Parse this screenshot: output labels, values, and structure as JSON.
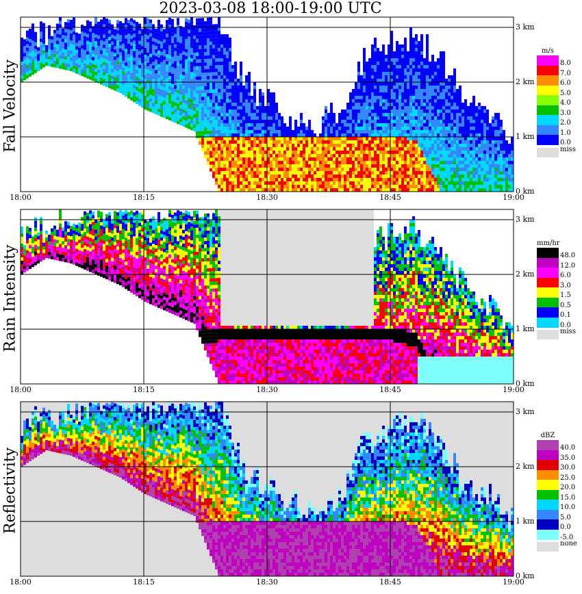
{
  "title": "2023-03-08   18:00-19:00 UTC",
  "x_tick_labels": [
    "18:00",
    "18:15",
    "18:30",
    "18:45",
    "19:00"
  ],
  "height_tick_labels": [
    "0 km",
    "1 km",
    "2 km",
    "3 km"
  ],
  "panels": [
    {
      "id": "fall-velocity",
      "ylabel": "Fall Velocity",
      "unit": "m/s",
      "missing_label": "miss",
      "scale": [
        {
          "label": "8.0",
          "color": "#ff00ff"
        },
        {
          "label": "7.0",
          "color": "#ff0000"
        },
        {
          "label": "6.0",
          "color": "#ff8c00"
        },
        {
          "label": "5.0",
          "color": "#ffff00"
        },
        {
          "label": "4.0",
          "color": "#88ff00"
        },
        {
          "label": "3.0",
          "color": "#00c000"
        },
        {
          "label": "2.0",
          "color": "#00d8ff"
        },
        {
          "label": "1.0",
          "color": "#3388ff"
        },
        {
          "label": "0.0",
          "color": "#0000ff"
        }
      ]
    },
    {
      "id": "rain-intensity",
      "ylabel": "Rain Intensity",
      "unit": "mm/hr",
      "missing_label": "miss",
      "scale": [
        {
          "label": "48.0",
          "color": "#000000"
        },
        {
          "label": "12.0",
          "color": "#c000c0"
        },
        {
          "label": "6.0",
          "color": "#ff00ff"
        },
        {
          "label": "3.0",
          "color": "#ff0000"
        },
        {
          "label": "1.5",
          "color": "#ffff00"
        },
        {
          "label": "0.5",
          "color": "#00c000"
        },
        {
          "label": "0.1",
          "color": "#0000ff"
        },
        {
          "label": "0.0",
          "color": "#00d8ff"
        }
      ],
      "extra_bottom_color": "#80ffff"
    },
    {
      "id": "reflectivity",
      "ylabel": "Reflectivity",
      "unit": "dBZ",
      "missing_label": "none",
      "scale": [
        {
          "label": "40.0",
          "color": "#b040b0"
        },
        {
          "label": "35.0",
          "color": "#c000c0"
        },
        {
          "label": "30.0",
          "color": "#e00000"
        },
        {
          "label": "25.0",
          "color": "#ff8c00"
        },
        {
          "label": "20.0",
          "color": "#ffff00"
        },
        {
          "label": "15.0",
          "color": "#00c000"
        },
        {
          "label": "10.0",
          "color": "#00d8ff"
        },
        {
          "label": "5.0",
          "color": "#3388ff"
        },
        {
          "label": "0.0",
          "color": "#0000c0"
        },
        {
          "label": "-5.0",
          "color": "#80ffff"
        }
      ]
    }
  ],
  "chart_data": {
    "type": "heatmap",
    "title": "2023-03-08   18:00-19:00 UTC",
    "x_range": [
      "18:00",
      "19:00"
    ],
    "y_range_km": [
      0,
      3.2
    ],
    "grid": true,
    "colors": {
      "missing": "#dddddd",
      "grid_line": "#000000"
    },
    "profiles_note_free": true,
    "profile_rows": [
      {
        "t": "18:00",
        "top": 2.7,
        "base": 2.0,
        "rain_top": 0
      },
      {
        "t": "18:03",
        "top": 2.9,
        "base": 2.3,
        "rain_top": 0
      },
      {
        "t": "18:06",
        "top": 3.0,
        "base": 2.2,
        "rain_top": 0
      },
      {
        "t": "18:09",
        "top": 3.2,
        "base": 2.0,
        "rain_top": 0
      },
      {
        "t": "18:12",
        "top": 3.2,
        "base": 1.8,
        "rain_top": 0
      },
      {
        "t": "18:15",
        "top": 3.2,
        "base": 1.5,
        "rain_top": 0
      },
      {
        "t": "18:18",
        "top": 3.2,
        "base": 1.3,
        "rain_top": 0
      },
      {
        "t": "18:21",
        "top": 3.2,
        "base": 1.1,
        "rain_top": 0.9
      },
      {
        "t": "18:24",
        "top": 3.2,
        "base": 0,
        "rain_top": 1.0
      },
      {
        "t": "18:27",
        "top": 2.0,
        "base": 0,
        "rain_top": 1.0
      },
      {
        "t": "18:30",
        "top": 1.6,
        "base": 0,
        "rain_top": 1.0
      },
      {
        "t": "18:33",
        "top": 1.3,
        "base": 0,
        "rain_top": 1.0
      },
      {
        "t": "18:36",
        "top": 1.2,
        "base": 0,
        "rain_top": 1.0
      },
      {
        "t": "18:39",
        "top": 1.5,
        "base": 0,
        "rain_top": 1.0
      },
      {
        "t": "18:42",
        "top": 2.5,
        "base": 0,
        "rain_top": 1.0
      },
      {
        "t": "18:45",
        "top": 2.7,
        "base": 0,
        "rain_top": 1.0
      },
      {
        "t": "18:48",
        "top": 2.8,
        "base": 0,
        "rain_top": 0.9
      },
      {
        "t": "18:51",
        "top": 2.4,
        "base": 0,
        "rain_top": 0
      },
      {
        "t": "18:54",
        "top": 1.7,
        "base": 0,
        "rain_top": 0
      },
      {
        "t": "18:57",
        "top": 1.4,
        "base": 0,
        "rain_top": 0
      },
      {
        "t": "19:00",
        "top": 1.0,
        "base": 0,
        "rain_top": 0
      }
    ]
  }
}
